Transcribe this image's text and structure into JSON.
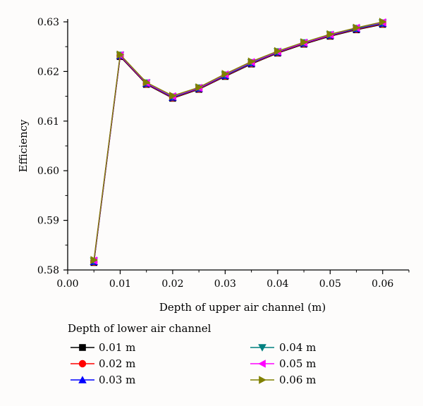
{
  "chart_data": {
    "type": "line",
    "xlabel": "Depth of upper air channel (m)",
    "ylabel": "Efficiency",
    "xlim": [
      0.0,
      0.065
    ],
    "ylim": [
      0.58,
      0.63
    ],
    "x_ticks": [
      "0.00",
      "0.01",
      "0.02",
      "0.03",
      "0.04",
      "0.05",
      "0.06"
    ],
    "y_ticks": [
      "0.58",
      "0.59",
      "0.60",
      "0.61",
      "0.62",
      "0.63"
    ],
    "x": [
      0.005,
      0.01,
      0.015,
      0.02,
      0.025,
      0.03,
      0.035,
      0.04,
      0.045,
      0.05,
      0.055,
      0.06
    ],
    "legend_title": "Depth of lower air channel",
    "legend_position": "bottom",
    "grid": false,
    "series": [
      {
        "name": "0.01 m",
        "color": "#000000",
        "marker": "square",
        "values": [
          0.5815,
          0.623,
          0.6174,
          0.6146,
          0.6164,
          0.619,
          0.6215,
          0.6237,
          0.6255,
          0.6271,
          0.6284,
          0.6295
        ]
      },
      {
        "name": "0.02 m",
        "color": "#ff0000",
        "marker": "circle",
        "values": [
          0.5816,
          0.6231,
          0.6175,
          0.6147,
          0.6165,
          0.6191,
          0.6216,
          0.6238,
          0.6256,
          0.6272,
          0.6285,
          0.6296
        ]
      },
      {
        "name": "0.03 m",
        "color": "#0000ff",
        "marker": "triangle-up",
        "values": [
          0.5817,
          0.6232,
          0.6176,
          0.6148,
          0.6166,
          0.6192,
          0.6217,
          0.6239,
          0.6257,
          0.6273,
          0.6286,
          0.6297
        ]
      },
      {
        "name": "0.04 m",
        "color": "#008080",
        "marker": "triangle-down",
        "values": [
          0.5818,
          0.6233,
          0.6177,
          0.6149,
          0.6167,
          0.6193,
          0.6218,
          0.624,
          0.6258,
          0.6274,
          0.6287,
          0.6298
        ]
      },
      {
        "name": "0.05 m",
        "color": "#ff00ff",
        "marker": "triangle-left",
        "values": [
          0.5819,
          0.6233,
          0.6177,
          0.615,
          0.6167,
          0.6194,
          0.6219,
          0.624,
          0.6258,
          0.6274,
          0.6288,
          0.6299
        ]
      },
      {
        "name": "0.06 m",
        "color": "#808000",
        "marker": "triangle-right",
        "values": [
          0.582,
          0.6234,
          0.6178,
          0.6151,
          0.6168,
          0.6195,
          0.622,
          0.6241,
          0.6259,
          0.6275,
          0.6288,
          0.63
        ]
      }
    ]
  }
}
